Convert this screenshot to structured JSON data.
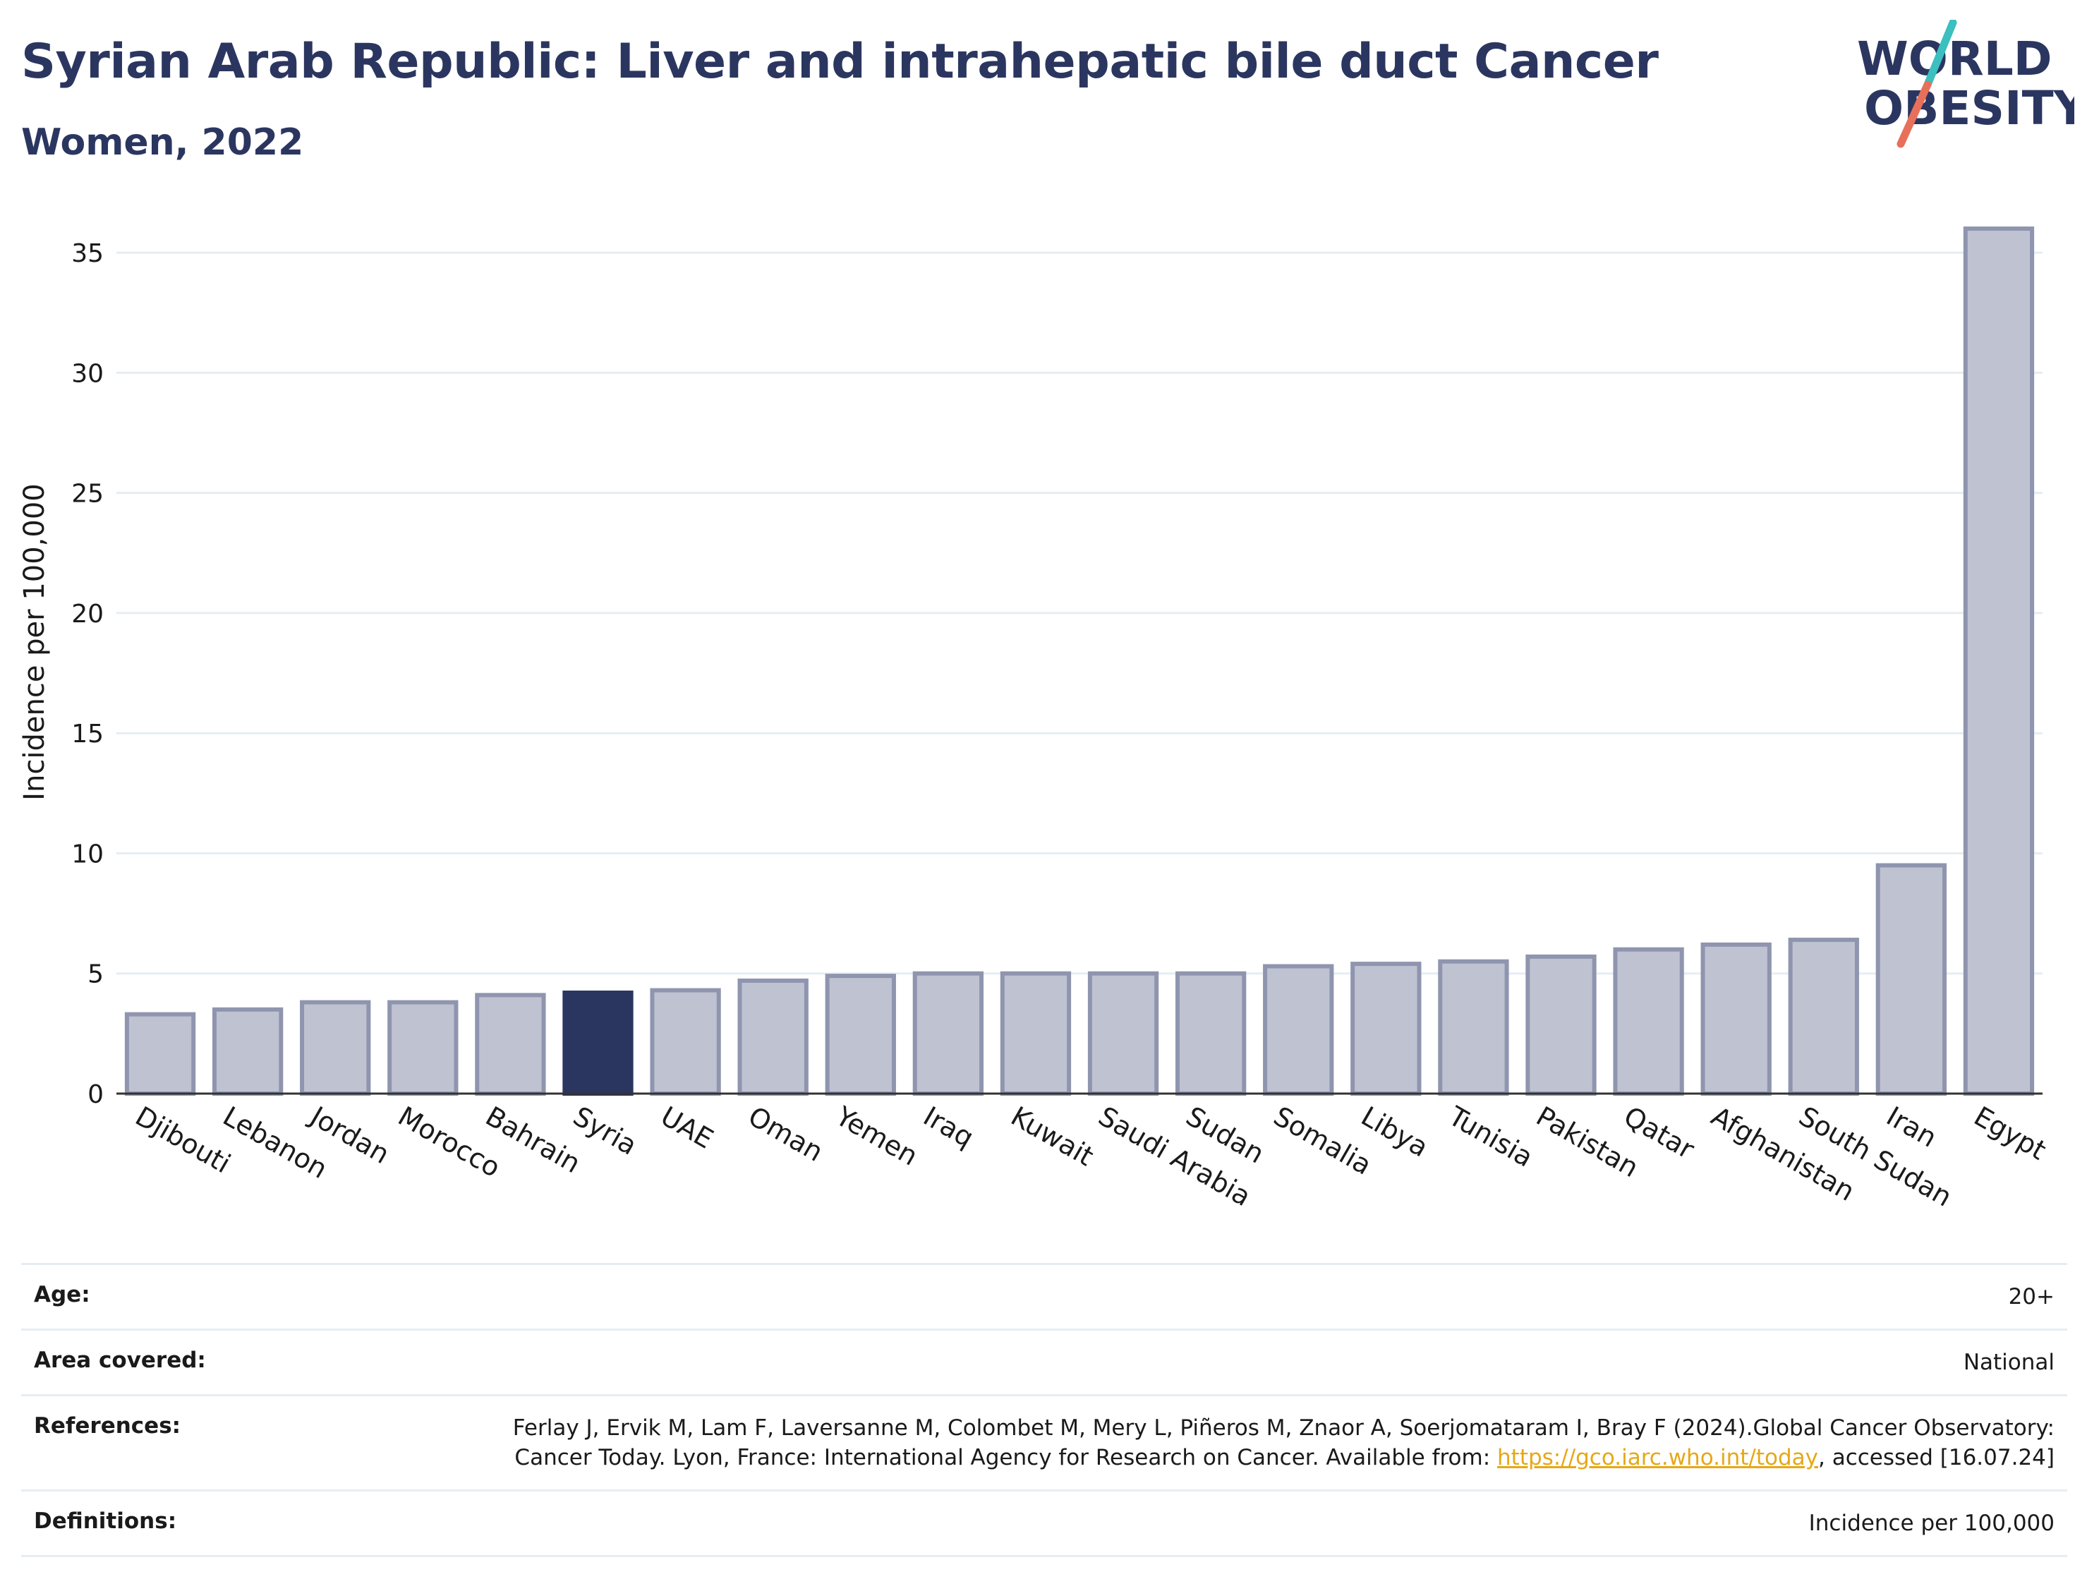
{
  "header": {
    "title": "Syrian Arab Republic: Liver and intrahepatic bile duct Cancer",
    "subtitle": "Women, 2022"
  },
  "logo": {
    "line1": "WORLD",
    "line2": "OBESITY",
    "colors": {
      "text": "#2b3660",
      "slash_top": "#3bbfbf",
      "slash_bottom": "#e8705a"
    }
  },
  "chart_data": {
    "type": "bar",
    "title": "Syrian Arab Republic: Liver and intrahepatic bile duct Cancer",
    "subtitle": "Women, 2022",
    "ylabel": "Incidence per 100,000",
    "xlabel": "",
    "ylim": [
      0,
      37
    ],
    "yticks": [
      0,
      5,
      10,
      15,
      20,
      25,
      30,
      35
    ],
    "grid": true,
    "highlight": "Syria",
    "colors": {
      "bar": "#bfc3d1",
      "bar_edge": "#8f95ae",
      "highlight": "#2b3660",
      "grid": "#e6edf2"
    },
    "categories": [
      "Djibouti",
      "Lebanon",
      "Jordan",
      "Morocco",
      "Bahrain",
      "Syria",
      "UAE",
      "Oman",
      "Yemen",
      "Iraq",
      "Kuwait",
      "Saudi Arabia",
      "Sudan",
      "Somalia",
      "Libya",
      "Tunisia",
      "Pakistan",
      "Qatar",
      "Afghanistan",
      "South Sudan",
      "Iran",
      "Egypt"
    ],
    "values": [
      3.3,
      3.5,
      3.8,
      3.8,
      4.1,
      4.2,
      4.3,
      4.7,
      4.9,
      5.0,
      5.0,
      5.0,
      5.0,
      5.3,
      5.4,
      5.5,
      5.7,
      6.0,
      6.2,
      6.4,
      9.5,
      36.0
    ]
  },
  "meta": {
    "rows": [
      {
        "key": "Age:",
        "value": "20+"
      },
      {
        "key": "Area covered:",
        "value": "National"
      },
      {
        "key": "References:",
        "value_pre": "Ferlay J, Ervik M, Lam F, Laversanne M, Colombet M, Mery L, Piñeros M, Znaor A, Soerjomataram I, Bray F (2024).Global Cancer Observatory: Cancer Today. Lyon, France: International Agency for Research on Cancer. Available from: ",
        "link": "https://gco.iarc.who.int/today",
        "value_post": ", accessed [16.07.24]"
      },
      {
        "key": "Definitions:",
        "value": "Incidence per 100,000"
      }
    ]
  }
}
